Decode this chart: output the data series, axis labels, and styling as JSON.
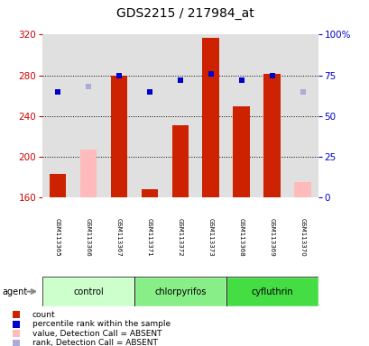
{
  "title": "GDS2215 / 217984_at",
  "samples": [
    "GSM113365",
    "GSM113366",
    "GSM113367",
    "GSM113371",
    "GSM113372",
    "GSM113373",
    "GSM113368",
    "GSM113369",
    "GSM113370"
  ],
  "bar_values": [
    183,
    207,
    280,
    168,
    231,
    317,
    249,
    281,
    175
  ],
  "bar_absent": [
    false,
    true,
    false,
    false,
    false,
    false,
    false,
    false,
    true
  ],
  "rank_pct": [
    65,
    68,
    75,
    65,
    72,
    76,
    72,
    75,
    65
  ],
  "rank_absent": [
    false,
    true,
    false,
    false,
    false,
    false,
    false,
    false,
    true
  ],
  "ylim_left": [
    160,
    320
  ],
  "ylim_right": [
    0,
    100
  ],
  "yticks_left": [
    160,
    200,
    240,
    280,
    320
  ],
  "yticks_right": [
    0,
    25,
    50,
    75,
    100
  ],
  "ytick_right_labels": [
    "0",
    "25",
    "50",
    "75",
    "100%"
  ],
  "ylabel_left_color": "#cc0000",
  "ylabel_right_color": "#0000cc",
  "bar_color_present": "#cc2200",
  "bar_color_absent": "#ffbbbb",
  "rank_color_present": "#0000cc",
  "rank_color_absent": "#aaaadd",
  "bar_width": 0.55,
  "plot_bg": "#e0e0e0",
  "group_defs": [
    {
      "start": 0,
      "end": 2,
      "label": "control",
      "color": "#ccffcc"
    },
    {
      "start": 3,
      "end": 5,
      "label": "chlorpyrifos",
      "color": "#88ee88"
    },
    {
      "start": 6,
      "end": 8,
      "label": "cyfluthrin",
      "color": "#44dd44"
    }
  ],
  "grid_yticks": [
    200,
    240,
    280
  ],
  "agent_label": "agent",
  "legend_items": [
    {
      "color": "#cc2200",
      "label": "count",
      "marker": "s"
    },
    {
      "color": "#0000cc",
      "label": "percentile rank within the sample",
      "marker": "s"
    },
    {
      "color": "#ffbbbb",
      "label": "value, Detection Call = ABSENT",
      "marker": "s"
    },
    {
      "color": "#aaaadd",
      "label": "rank, Detection Call = ABSENT",
      "marker": "s"
    }
  ]
}
